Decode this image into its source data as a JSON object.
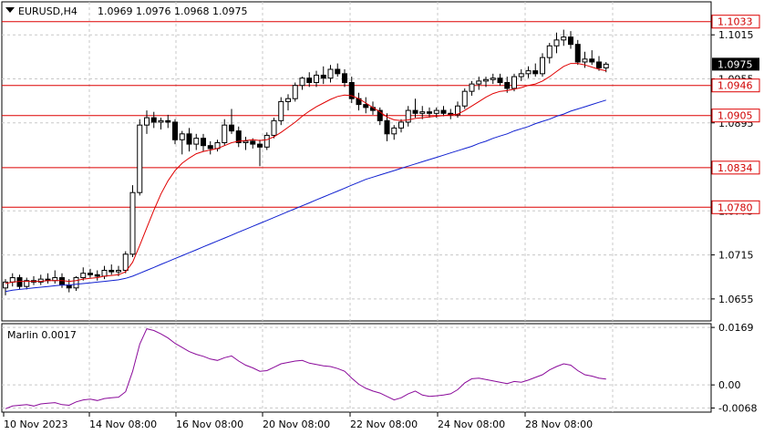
{
  "header": {
    "symbol": "EURUSD,H4",
    "ohlc": "1.0969 1.0976 1.0968 1.0975"
  },
  "colors": {
    "background": "#ffffff",
    "grid": "#c8c8c8",
    "bull_candle": "#ffffff",
    "bear_candle": "#000000",
    "level_line": "#dd0000",
    "ma_fast": "#e00000",
    "ma_slow": "#1020d0",
    "oscillator": "#8a0a9a"
  },
  "chart_data": [
    {
      "type": "candlestick",
      "name": "EURUSD,H4",
      "ylim": [
        1.0625,
        1.106
      ],
      "y_ticks": [
        "1.1015",
        "1.0955",
        "1.0895",
        "1.0775",
        "1.0715",
        "1.0655"
      ],
      "x_labels": [
        "10 Nov 2023",
        "14 Nov 08:00",
        "16 Nov 08:00",
        "20 Nov 08:00",
        "22 Nov 08:00",
        "24 Nov 08:00",
        "28 Nov 08:00"
      ],
      "current_price": "1.0975",
      "levels": [
        "1.1033",
        "1.0946",
        "1.0905",
        "1.0834",
        "1.0780"
      ],
      "candles": [
        [
          1.067,
          1.0682,
          1.066,
          1.0678
        ],
        [
          1.0678,
          1.069,
          1.0672,
          1.0684
        ],
        [
          1.0684,
          1.0688,
          1.0668,
          1.0672
        ],
        [
          1.0672,
          1.0684,
          1.0668,
          1.068
        ],
        [
          1.068,
          1.0686,
          1.0674,
          1.0678
        ],
        [
          1.0678,
          1.0688,
          1.0674,
          1.0682
        ],
        [
          1.0682,
          1.069,
          1.0676,
          1.068
        ],
        [
          1.068,
          1.0694,
          1.0676,
          1.0684
        ],
        [
          1.0684,
          1.069,
          1.067,
          1.0674
        ],
        [
          1.0674,
          1.0682,
          1.0664,
          1.067
        ],
        [
          1.067,
          1.0686,
          1.0666,
          1.0684
        ],
        [
          1.0684,
          1.0698,
          1.068,
          1.069
        ],
        [
          1.069,
          1.0696,
          1.0684,
          1.0688
        ],
        [
          1.0688,
          1.0694,
          1.068,
          1.0686
        ],
        [
          1.0686,
          1.07,
          1.0682,
          1.0694
        ],
        [
          1.0694,
          1.0702,
          1.0688,
          1.0692
        ],
        [
          1.0692,
          1.07,
          1.0686,
          1.0694
        ],
        [
          1.0694,
          1.072,
          1.069,
          1.0716
        ],
        [
          1.0716,
          1.081,
          1.0712,
          1.08
        ],
        [
          1.08,
          1.09,
          1.0796,
          1.0892
        ],
        [
          1.0892,
          1.0912,
          1.088,
          1.0902
        ],
        [
          1.0902,
          1.091,
          1.0888,
          1.0896
        ],
        [
          1.0896,
          1.0902,
          1.0886,
          1.0898
        ],
        [
          1.0898,
          1.0906,
          1.0888,
          1.0896
        ],
        [
          1.0896,
          1.09,
          1.0866,
          1.0872
        ],
        [
          1.0872,
          1.0884,
          1.0852,
          1.088
        ],
        [
          1.088,
          1.0888,
          1.0856,
          1.0866
        ],
        [
          1.0866,
          1.088,
          1.0858,
          1.0874
        ],
        [
          1.0874,
          1.088,
          1.0856,
          1.0864
        ],
        [
          1.0864,
          1.087,
          1.0852,
          1.086
        ],
        [
          1.086,
          1.0872,
          1.0856,
          1.0868
        ],
        [
          1.0868,
          1.09,
          1.0864,
          1.0892
        ],
        [
          1.0892,
          1.0914,
          1.088,
          1.0884
        ],
        [
          1.0884,
          1.089,
          1.0862,
          1.0868
        ],
        [
          1.0868,
          1.0876,
          1.0858,
          1.087
        ],
        [
          1.087,
          1.0874,
          1.086,
          1.0866
        ],
        [
          1.0866,
          1.0872,
          1.0836,
          1.0862
        ],
        [
          1.0862,
          1.0882,
          1.0858,
          1.0878
        ],
        [
          1.0878,
          1.0902,
          1.0874,
          1.0898
        ],
        [
          1.0898,
          1.093,
          1.0892,
          1.0924
        ],
        [
          1.0924,
          1.0934,
          1.0912,
          1.0928
        ],
        [
          1.0928,
          1.095,
          1.0924,
          1.0946
        ],
        [
          1.0946,
          1.0958,
          1.094,
          1.0956
        ],
        [
          1.0956,
          1.0964,
          1.0944,
          1.095
        ],
        [
          1.095,
          1.0966,
          1.0944,
          1.096
        ],
        [
          1.096,
          1.0972,
          1.0948,
          1.0956
        ],
        [
          1.0956,
          1.0974,
          1.095,
          1.0968
        ],
        [
          1.0968,
          1.0976,
          1.0958,
          1.0962
        ],
        [
          1.0962,
          1.0968,
          1.0944,
          1.095
        ],
        [
          1.095,
          1.0958,
          1.0922,
          1.0928
        ],
        [
          1.0928,
          1.0936,
          1.0912,
          1.092
        ],
        [
          1.092,
          1.093,
          1.0908,
          1.0916
        ],
        [
          1.0916,
          1.0924,
          1.0906,
          1.0912
        ],
        [
          1.0912,
          1.0916,
          1.0892,
          1.0898
        ],
        [
          1.0898,
          1.0908,
          1.087,
          1.088
        ],
        [
          1.088,
          1.0892,
          1.0872,
          1.0888
        ],
        [
          1.0888,
          1.09,
          1.0882,
          1.0896
        ],
        [
          1.0896,
          1.0918,
          1.089,
          1.0912
        ],
        [
          1.0912,
          1.0928,
          1.0902,
          1.0908
        ],
        [
          1.0908,
          1.0918,
          1.09,
          1.091
        ],
        [
          1.091,
          1.0916,
          1.0902,
          1.0908
        ],
        [
          1.0908,
          1.0916,
          1.0902,
          1.0912
        ],
        [
          1.0912,
          1.0918,
          1.0904,
          1.0908
        ],
        [
          1.0908,
          1.0914,
          1.09,
          1.0906
        ],
        [
          1.0906,
          1.0924,
          1.0902,
          1.0918
        ],
        [
          1.0918,
          1.0942,
          1.0914,
          1.0938
        ],
        [
          1.0938,
          1.0952,
          1.0932,
          1.0948
        ],
        [
          1.0948,
          1.0958,
          1.094,
          1.0952
        ],
        [
          1.0952,
          1.0958,
          1.0944,
          1.0954
        ],
        [
          1.0954,
          1.0962,
          1.0948,
          1.0956
        ],
        [
          1.0956,
          1.0962,
          1.0946,
          1.095
        ],
        [
          1.095,
          1.0958,
          1.0936,
          1.0942
        ],
        [
          1.0942,
          1.0962,
          1.0938,
          1.0958
        ],
        [
          1.0958,
          1.0968,
          1.0952,
          1.0962
        ],
        [
          1.0962,
          1.0972,
          1.0956,
          1.0966
        ],
        [
          1.0966,
          1.0976,
          1.0958,
          1.0962
        ],
        [
          1.0962,
          1.099,
          1.0958,
          1.0984
        ],
        [
          1.0984,
          1.1004,
          1.0976,
          1.1
        ],
        [
          1.1,
          1.1018,
          1.099,
          1.1008
        ],
        [
          1.1008,
          1.1022,
          1.1,
          1.1012
        ],
        [
          1.1012,
          1.102,
          1.0996,
          1.1002
        ],
        [
          1.1002,
          1.1008,
          1.0974,
          1.0978
        ],
        [
          1.0978,
          1.0992,
          1.097,
          1.0982
        ],
        [
          1.0982,
          1.0994,
          1.0974,
          1.0978
        ],
        [
          1.0978,
          1.0986,
          1.0966,
          1.097
        ],
        [
          1.097,
          1.0978,
          1.0964,
          1.0975
        ]
      ],
      "ma_fast": [
        1.0676,
        1.0678,
        1.0679,
        1.0679,
        1.0679,
        1.0679,
        1.068,
        1.068,
        1.068,
        1.0679,
        1.068,
        1.0682,
        1.0683,
        1.0684,
        1.0686,
        1.0687,
        1.0688,
        1.0692,
        1.0705,
        1.0728,
        1.0752,
        1.0776,
        1.0798,
        1.0816,
        1.083,
        1.084,
        1.0847,
        1.0853,
        1.0856,
        1.0858,
        1.086,
        1.0864,
        1.0868,
        1.087,
        1.0871,
        1.0872,
        1.0871,
        1.0872,
        1.0876,
        1.0882,
        1.0889,
        1.0896,
        1.0904,
        1.0911,
        1.0917,
        1.0922,
        1.0927,
        1.0931,
        1.0933,
        1.0932,
        1.0928,
        1.0922,
        1.0916,
        1.091,
        1.0903,
        1.0899,
        1.0898,
        1.0899,
        1.0901,
        1.0902,
        1.0903,
        1.0904,
        1.0905,
        1.0906,
        1.0907,
        1.0912,
        1.0918,
        1.0924,
        1.093,
        1.0935,
        1.0938,
        1.0939,
        1.0941,
        1.0943,
        1.0946,
        1.0948,
        1.0952,
        1.0958,
        1.0965,
        1.0972,
        1.0976,
        1.0976,
        1.0974,
        1.0971,
        1.0968,
        1.0966
      ],
      "ma_slow": [
        1.0665,
        1.0667,
        1.0668,
        1.0669,
        1.067,
        1.0671,
        1.0672,
        1.0673,
        1.0674,
        1.0674,
        1.0675,
        1.0676,
        1.0677,
        1.0678,
        1.0679,
        1.068,
        1.0681,
        1.0683,
        1.0686,
        1.069,
        1.0694,
        1.0698,
        1.0702,
        1.0706,
        1.071,
        1.0714,
        1.0718,
        1.0722,
        1.0726,
        1.073,
        1.0734,
        1.0738,
        1.0742,
        1.0746,
        1.075,
        1.0754,
        1.0758,
        1.0762,
        1.0766,
        1.077,
        1.0774,
        1.0778,
        1.0782,
        1.0786,
        1.079,
        1.0794,
        1.0798,
        1.0802,
        1.0806,
        1.081,
        1.0814,
        1.0818,
        1.0821,
        1.0824,
        1.0827,
        1.083,
        1.0833,
        1.0836,
        1.0839,
        1.0842,
        1.0845,
        1.0848,
        1.0851,
        1.0854,
        1.0857,
        1.086,
        1.0863,
        1.0867,
        1.087,
        1.0874,
        1.0877,
        1.088,
        1.0884,
        1.0887,
        1.089,
        1.0894,
        1.0897,
        1.09,
        1.0904,
        1.0907,
        1.0911,
        1.0914,
        1.0917,
        1.092,
        1.0923,
        1.0926
      ]
    },
    {
      "type": "line",
      "name": "Marlin",
      "label": "Marlin 0.0017",
      "ylim": [
        -0.008,
        0.018
      ],
      "y_ticks": [
        "0.0169",
        "0.00",
        "-0.0068"
      ],
      "values": [
        -0.007,
        -0.0062,
        -0.006,
        -0.0058,
        -0.0062,
        -0.0056,
        -0.0054,
        -0.0052,
        -0.0058,
        -0.006,
        -0.005,
        -0.0044,
        -0.0042,
        -0.0046,
        -0.004,
        -0.0038,
        -0.0036,
        -0.002,
        0.004,
        0.012,
        0.0165,
        0.016,
        0.015,
        0.0138,
        0.0122,
        0.011,
        0.0098,
        0.009,
        0.0084,
        0.0076,
        0.0072,
        0.008,
        0.0085,
        0.007,
        0.0058,
        0.005,
        0.004,
        0.0042,
        0.0052,
        0.0062,
        0.0066,
        0.007,
        0.0072,
        0.0064,
        0.006,
        0.0056,
        0.0054,
        0.0048,
        0.004,
        0.002,
        0.0002,
        -0.001,
        -0.0018,
        -0.0024,
        -0.0034,
        -0.0044,
        -0.0038,
        -0.0026,
        -0.0018,
        -0.003,
        -0.0034,
        -0.0032,
        -0.003,
        -0.0026,
        -0.0014,
        0.0006,
        0.0018,
        0.002,
        0.0016,
        0.0012,
        0.0008,
        0.0004,
        0.001,
        0.0008,
        0.0014,
        0.0022,
        0.003,
        0.0044,
        0.0054,
        0.0062,
        0.0058,
        0.0042,
        0.003,
        0.0026,
        0.002,
        0.0017
      ]
    }
  ]
}
